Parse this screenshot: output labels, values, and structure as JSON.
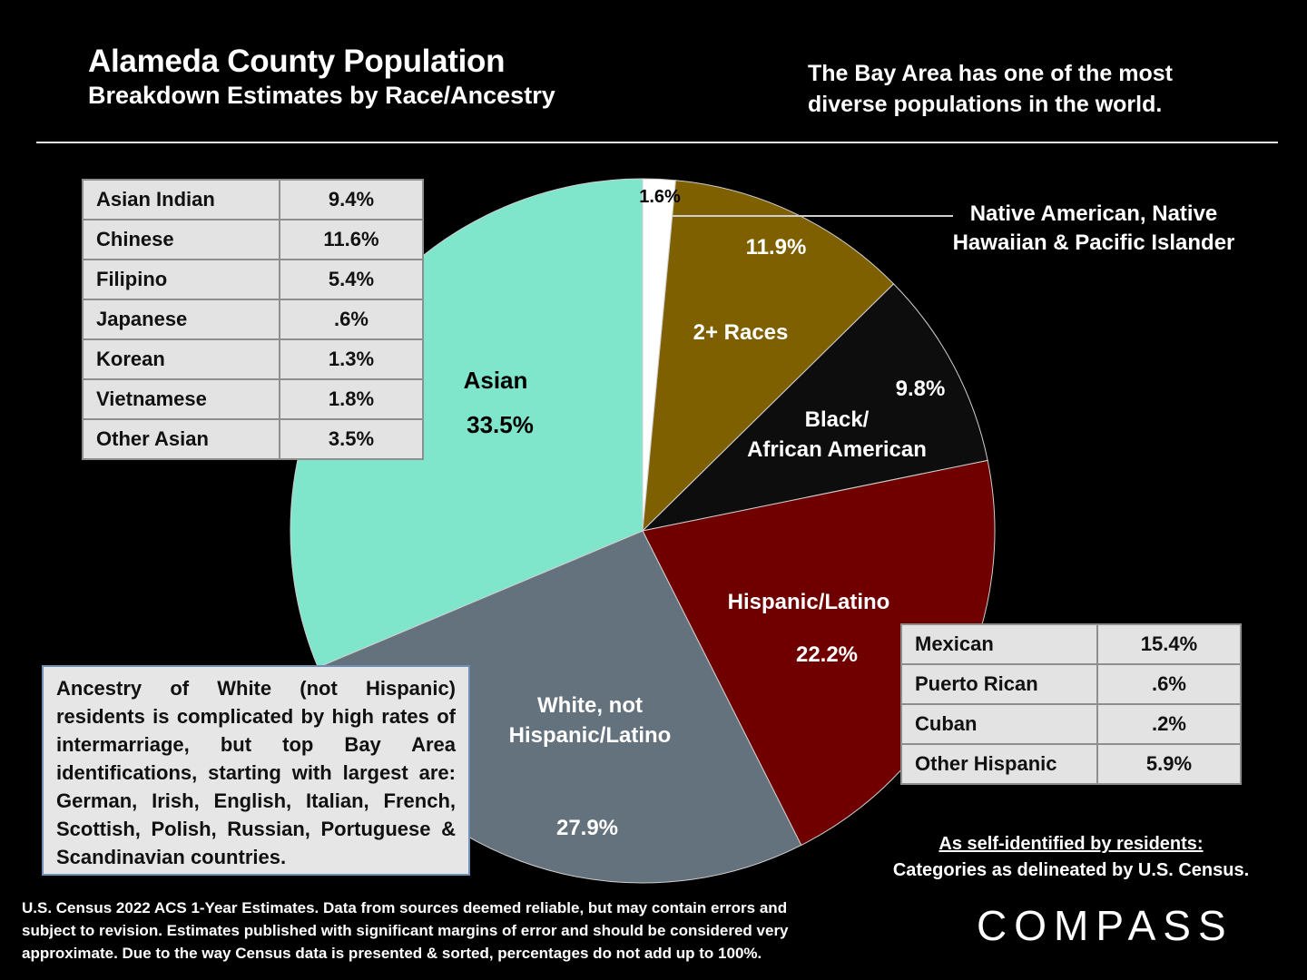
{
  "header": {
    "title": "Alameda County Population",
    "subtitle": "Breakdown Estimates by Race/Ancestry",
    "tagline": "The Bay Area has one of the most diverse populations in the world."
  },
  "chart_data": {
    "type": "pie",
    "slices": [
      {
        "name": "Native American, Native Hawaiian & Pacific Islander",
        "label": "",
        "value": 1.6,
        "value_label": "1.6%",
        "color": "#ffffff"
      },
      {
        "name": "2+ Races",
        "label": "2+ Races",
        "value": 11.9,
        "value_label": "11.9%",
        "color": "#7f6000"
      },
      {
        "name": "Black/ African American",
        "label": "Black/ African American",
        "value": 9.8,
        "value_label": "9.8%",
        "color": "#0d0d0d"
      },
      {
        "name": "Hispanic/Latino",
        "label": "Hispanic/Latino",
        "value": 22.2,
        "value_label": "22.2%",
        "color": "#700000"
      },
      {
        "name": "White, not Hispanic/Latino",
        "label": "White, not Hispanic/Latino",
        "value": 27.9,
        "value_label": "27.9%",
        "color": "#64727e"
      },
      {
        "name": "Asian",
        "label": "Asian",
        "value": 33.5,
        "value_label": "33.5%",
        "color": "#7fe6cc"
      }
    ]
  },
  "native_callout": "Native American, Native Hawaiian & Pacific Islander",
  "asian_breakdown": [
    {
      "name": "Asian Indian",
      "value": "9.4%"
    },
    {
      "name": "Chinese",
      "value": "11.6%"
    },
    {
      "name": "Filipino",
      "value": "5.4%"
    },
    {
      "name": "Japanese",
      "value": ".6%"
    },
    {
      "name": "Korean",
      "value": "1.3%"
    },
    {
      "name": "Vietnamese",
      "value": "1.8%"
    },
    {
      "name": "Other Asian",
      "value": "3.5%"
    }
  ],
  "hispanic_breakdown": [
    {
      "name": "Mexican",
      "value": "15.4%"
    },
    {
      "name": "Puerto Rican",
      "value": ".6%"
    },
    {
      "name": "Cuban",
      "value": ".2%"
    },
    {
      "name": "Other Hispanic",
      "value": "5.9%"
    }
  ],
  "white_note": "Ancestry of White (not Hispanic) residents is complicated by high rates of intermarriage, but top Bay Area identifications, starting with largest are: German, Irish, English, Italian, French, Scottish, Polish, Russian, Portuguese & Scandinavian countries.",
  "self_identified": {
    "line1": "As self-identified by residents:",
    "line2": "Categories as delineated by U.S. Census."
  },
  "footnote": "U.S. Census 2022 ACS 1-Year Estimates. Data from sources deemed reliable, but may contain errors and subject to revision. Estimates published with significant margins of error and should be considered very approximate. Due to the way Census data is presented & sorted, percentages do not add up to 100%.",
  "brand": "COMPASS"
}
